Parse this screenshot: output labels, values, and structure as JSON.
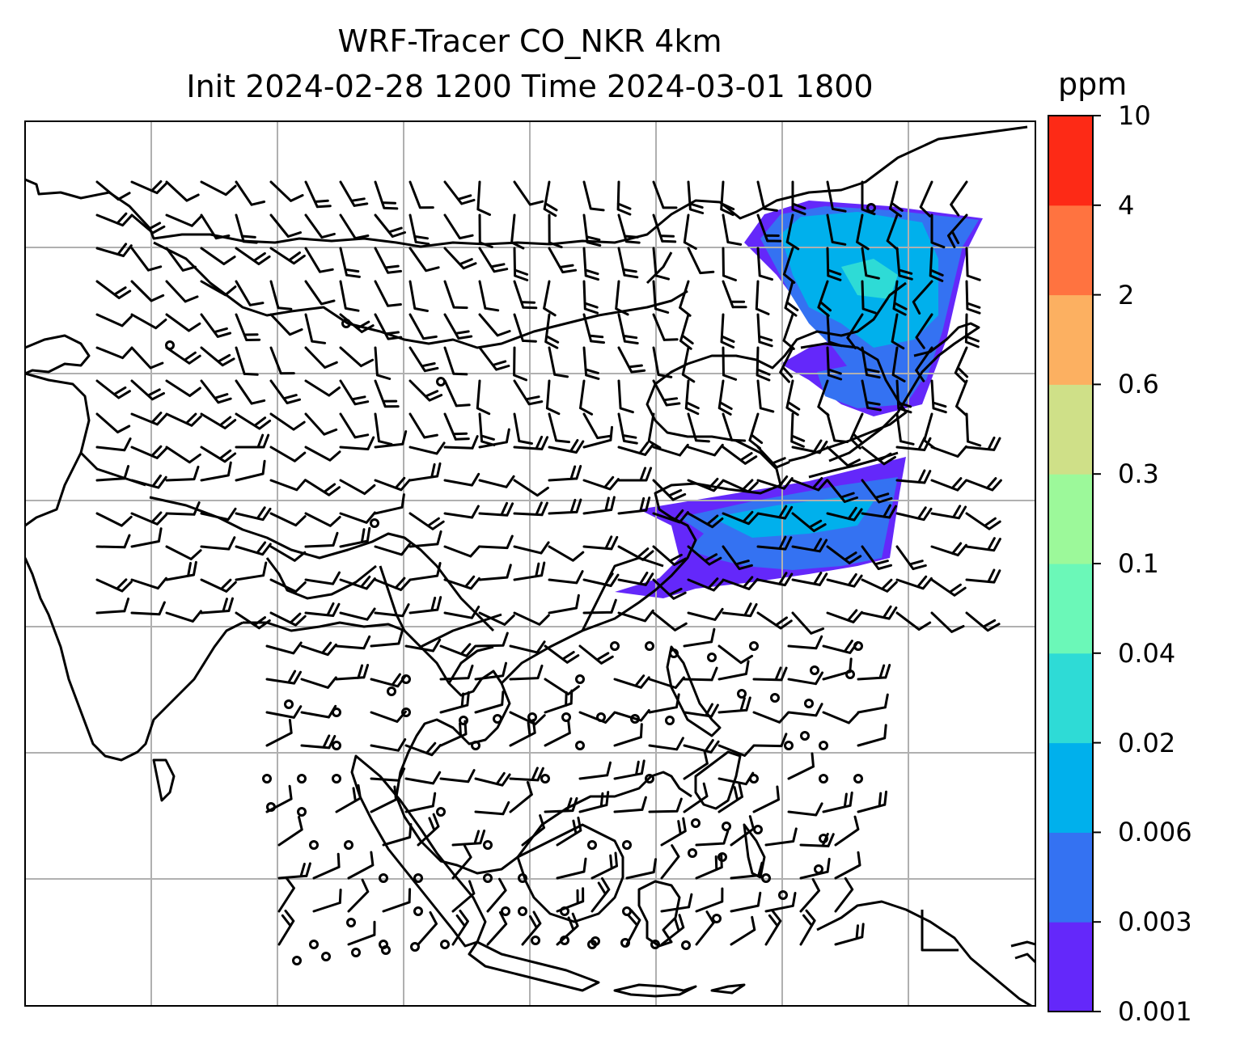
{
  "title": {
    "line1": "WRF-Tracer CO_NKR 4km",
    "line2": "Init 2024-02-28 1200 Time 2024-03-01 1800"
  },
  "colorbar": {
    "unit": "ppm",
    "levels": [
      "0.001",
      "0.003",
      "0.006",
      "0.02",
      "0.04",
      "0.1",
      "0.3",
      "0.6",
      "2",
      "4",
      "10"
    ],
    "colors": [
      "#6428fa",
      "#3472f2",
      "#00b0ec",
      "#2edbd6",
      "#6bf8b8",
      "#9cf99a",
      "#cfe088",
      "#fcb061",
      "#ff7340",
      "#fd2a16"
    ]
  },
  "map": {
    "gridlines": true,
    "plume_colors": {
      "low": "#6428fa",
      "mid": "#3472f2",
      "high": "#00b0ec",
      "peak": "#2edbd6"
    },
    "wind_barbs": true
  }
}
